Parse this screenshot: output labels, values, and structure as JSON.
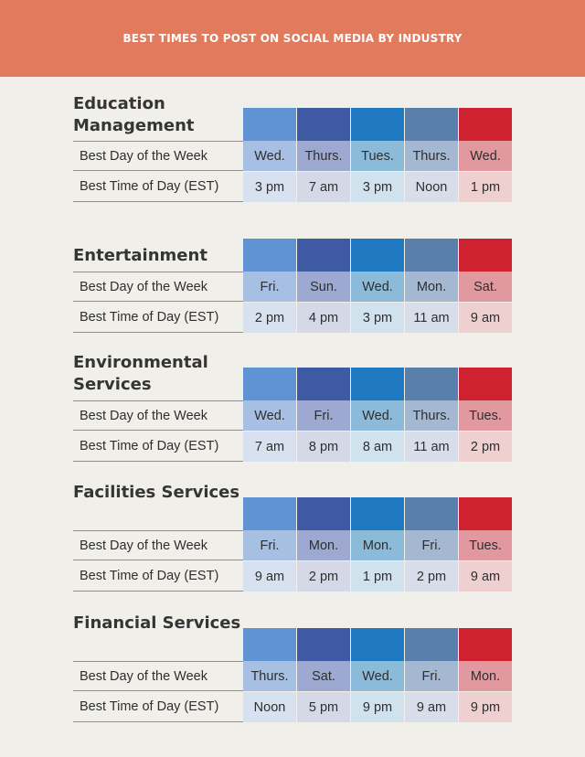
{
  "title": "BEST TIMES TO POST ON SOCIAL MEDIA BY INDUSTRY",
  "row_labels": {
    "day": "Best Day of the Week",
    "time": "Best Time of Day (EST)"
  },
  "platform_colors": [
    "#5f93d4",
    "#3e5aa4",
    "#1e79c0",
    "#5b7fad",
    "#cf2231"
  ],
  "industries": [
    {
      "name": "Education Management",
      "days": [
        "Wed.",
        "Thurs.",
        "Tues.",
        "Thurs.",
        "Wed."
      ],
      "times": [
        "3 pm",
        "7 am",
        "3 pm",
        "Noon",
        "1 pm"
      ]
    },
    {
      "name": "Entertainment",
      "days": [
        "Fri.",
        "Sun.",
        "Wed.",
        "Mon.",
        "Sat."
      ],
      "times": [
        "2 pm",
        "4 pm",
        "3 pm",
        "11 am",
        "9 am"
      ]
    },
    {
      "name": "Environmental Services",
      "days": [
        "Wed.",
        "Fri.",
        "Wed.",
        "Thurs.",
        "Tues."
      ],
      "times": [
        "7 am",
        "8 pm",
        "8 am",
        "11 am",
        "2 pm"
      ]
    },
    {
      "name": "Facilities Services",
      "days": [
        "Fri.",
        "Mon.",
        "Mon.",
        "Fri.",
        "Tues."
      ],
      "times": [
        "9 am",
        "2 pm",
        "1 pm",
        "2 pm",
        "9 am"
      ]
    },
    {
      "name": "Financial Services",
      "days": [
        "Thurs.",
        "Sat.",
        "Wed.",
        "Fri.",
        "Mon."
      ],
      "times": [
        "Noon",
        "5 pm",
        "9 pm",
        "9 am",
        "9 pm"
      ]
    }
  ]
}
